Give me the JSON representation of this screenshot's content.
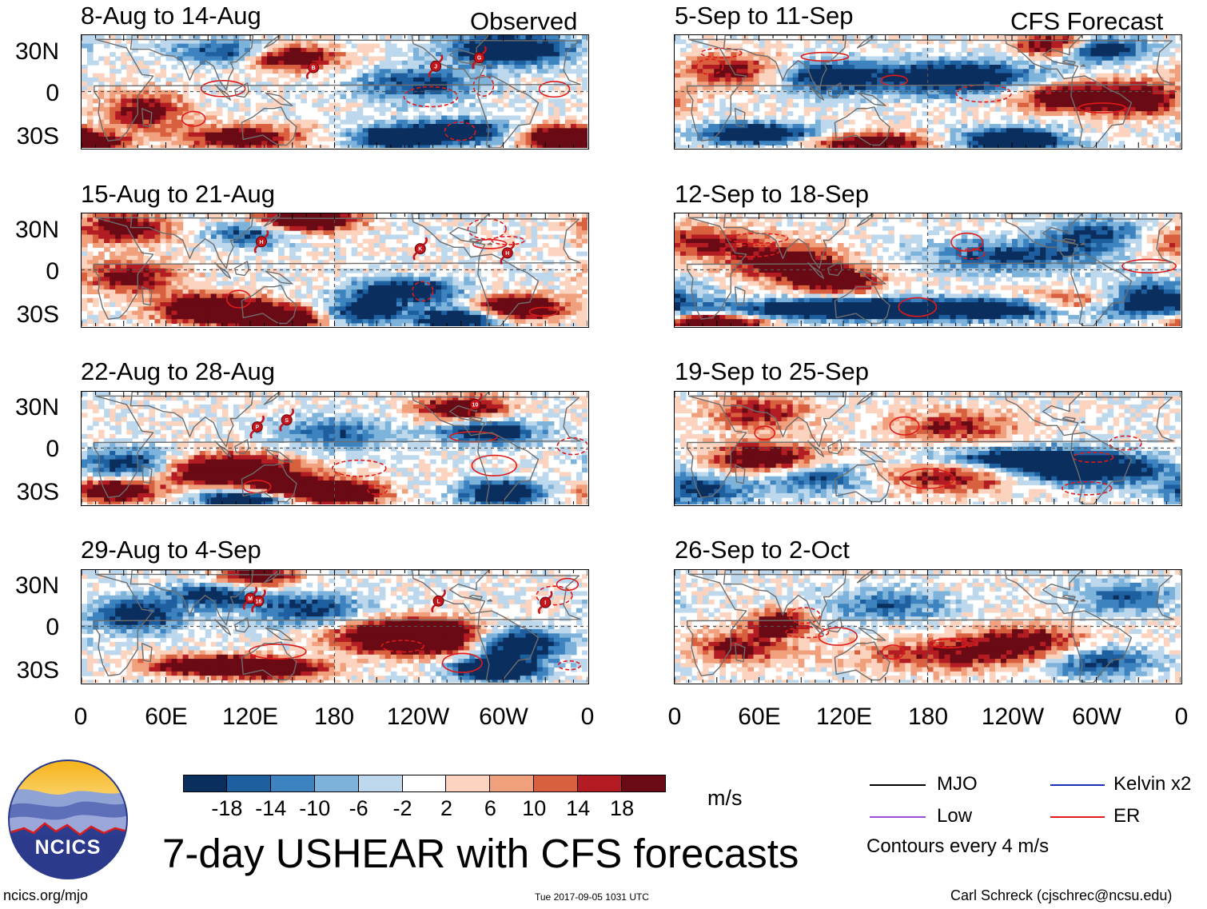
{
  "header": {
    "observed_label": "Observed",
    "forecast_label": "CFS Forecast"
  },
  "panels": [
    {
      "title": "8-Aug to 14-Aug",
      "storms": [
        {
          "label": "B",
          "lon": 165,
          "lat": 17
        },
        {
          "label": "J",
          "lon": 252,
          "lat": 18
        },
        {
          "label": "G",
          "lon": 283,
          "lat": 24
        }
      ]
    },
    {
      "title": "15-Aug to 21-Aug",
      "storms": [
        {
          "label": "H",
          "lon": 128,
          "lat": 20
        },
        {
          "label": "K",
          "lon": 241,
          "lat": 15
        },
        {
          "label": "H",
          "lon": 303,
          "lat": 12
        }
      ]
    },
    {
      "title": "22-Aug to 28-Aug",
      "storms": [
        {
          "label": "P",
          "lon": 125,
          "lat": 15
        },
        {
          "label": "S",
          "lon": 146,
          "lat": 20
        },
        {
          "label": "10",
          "lon": 280,
          "lat": 31
        }
      ]
    },
    {
      "title": "29-Aug to 4-Sep",
      "storms": [
        {
          "label": "M",
          "lon": 120,
          "lat": 20
        },
        {
          "label": "16",
          "lon": 126,
          "lat": 18
        },
        {
          "label": "L",
          "lon": 254,
          "lat": 18
        },
        {
          "label": "I",
          "lon": 330,
          "lat": 17
        }
      ]
    },
    {
      "title": "5-Sep to 11-Sep",
      "storms": []
    },
    {
      "title": "12-Sep to 18-Sep",
      "storms": []
    },
    {
      "title": "19-Sep to 25-Sep",
      "storms": []
    },
    {
      "title": "26-Sep to 2-Oct",
      "storms": []
    }
  ],
  "axes": {
    "lat_ticks": [
      "30N",
      "0",
      "30S"
    ],
    "lon_ticks": [
      "0",
      "60E",
      "120E",
      "180",
      "120W",
      "60W",
      "0"
    ]
  },
  "colorbar": {
    "colors": [
      "#0a2e5e",
      "#1e5fa0",
      "#3d83bf",
      "#7db3db",
      "#bdd8ec",
      "#ffffff",
      "#fbd3bf",
      "#f1a07d",
      "#d9603f",
      "#b21c22",
      "#6a0a14"
    ],
    "labels": [
      "-18",
      "-14",
      "-10",
      "-6",
      "-2",
      "2",
      "6",
      "10",
      "14",
      "18"
    ],
    "units": "m/s"
  },
  "legend": {
    "items": [
      {
        "label": "MJO",
        "color": "#000000"
      },
      {
        "label": "Kelvin x2",
        "color": "#1a2fbf"
      },
      {
        "label": "Low",
        "color": "#9b4fd6"
      },
      {
        "label": "ER",
        "color": "#e01a1a"
      }
    ],
    "note": "Contours every 4 m/s"
  },
  "logo_text": "NCICS",
  "main_title": "7-day USHEAR with CFS forecasts",
  "footer": {
    "url": "ncics.org/mjo",
    "timestamp": "Tue 2017-09-05 1031 UTC",
    "author": "Carl Schreck (cjschrec@ncsu.edu)"
  }
}
